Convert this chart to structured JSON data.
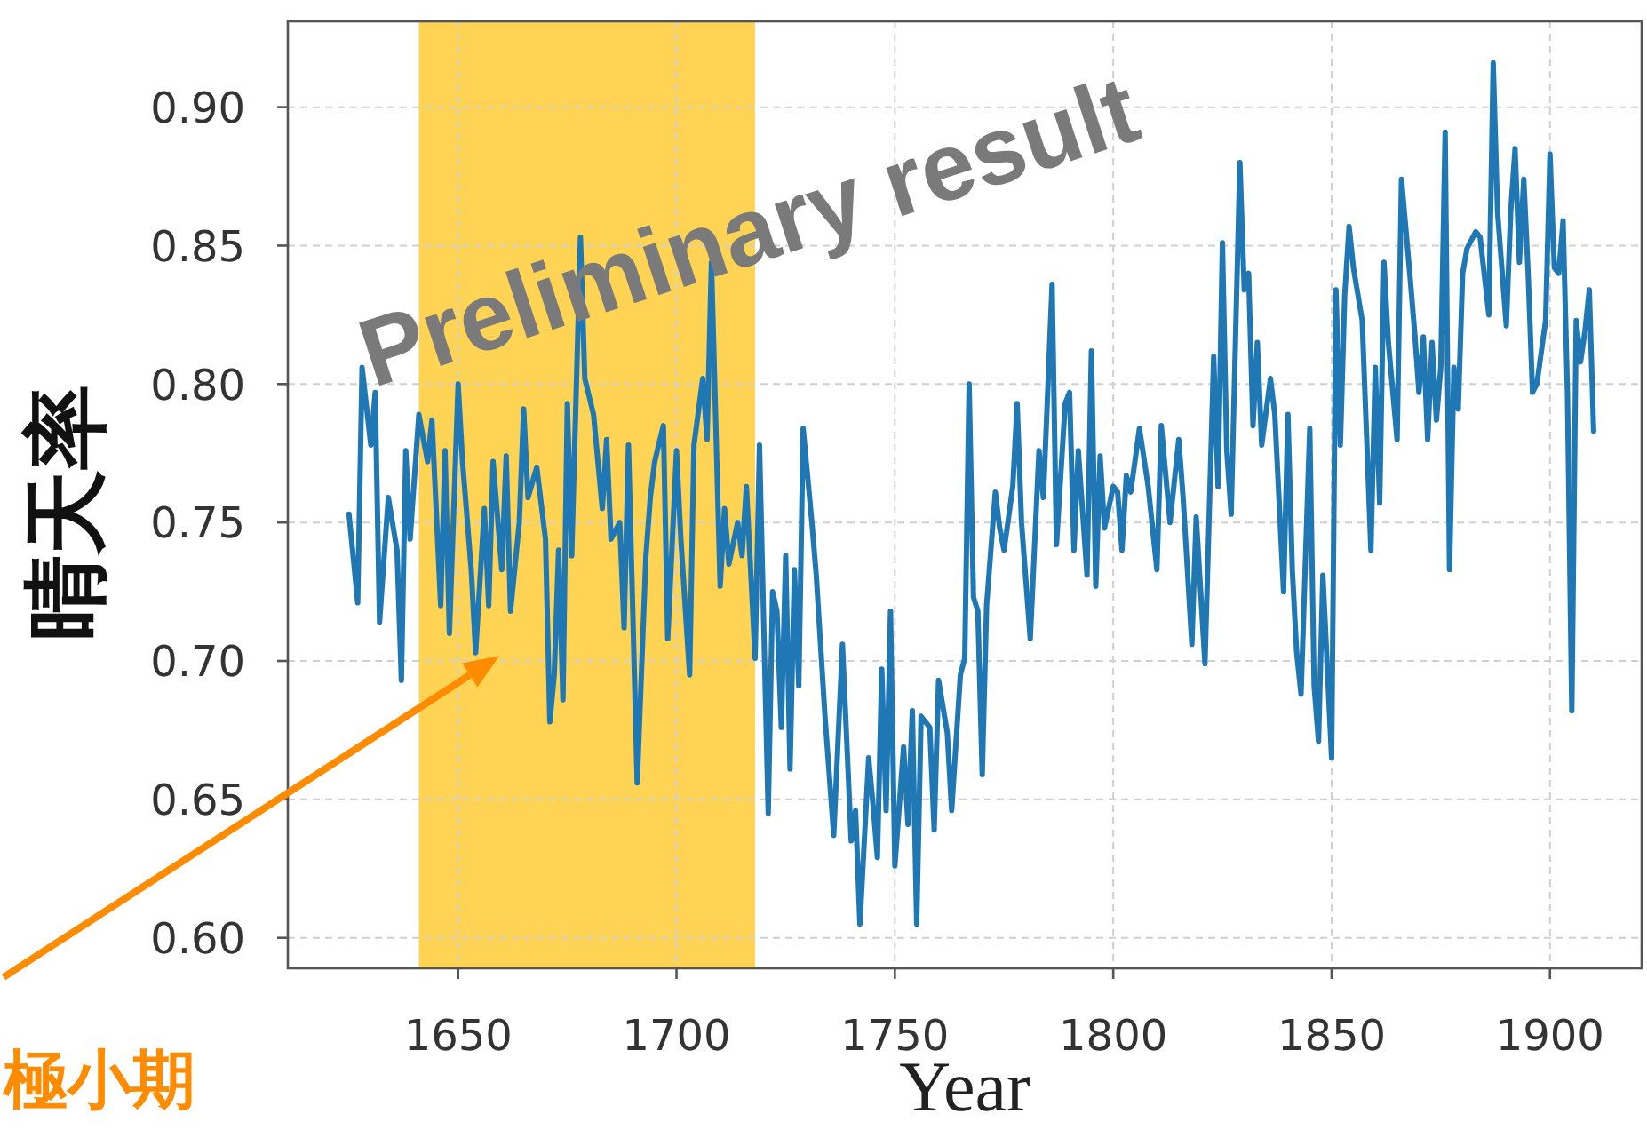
{
  "chart_data": {
    "type": "line",
    "xlabel": "Year",
    "ylabel": "晴天率",
    "annotations": [
      "Preliminary result"
    ],
    "xlim": [
      1611,
      1921
    ],
    "ylim": [
      0.589,
      0.931
    ],
    "xticks": [
      1650,
      1700,
      1750,
      1800,
      1850,
      1900
    ],
    "yticks": [
      {
        "value": 0.6,
        "label": "0.60"
      },
      0.65,
      {
        "value": 0.7,
        "label": "0.70"
      },
      0.75,
      {
        "value": 0.8,
        "label": "0.80"
      },
      0.85,
      {
        "value": 0.9,
        "label": "0.90"
      }
    ],
    "grid": true,
    "bands": [
      {
        "axis": "x",
        "from": 1641,
        "to": 1718,
        "label": "極小期",
        "color": "#ffc929"
      }
    ],
    "x": [
      1625,
      1627,
      1628,
      1630,
      1631,
      1632,
      1634,
      1636,
      1637,
      1638,
      1639,
      1641,
      1643,
      1644,
      1646,
      1647,
      1648,
      1650,
      1651,
      1653,
      1654,
      1656,
      1657,
      1658,
      1660,
      1661,
      1662,
      1664,
      1665,
      1666,
      1668,
      1670,
      1671,
      1672,
      1673,
      1674,
      1675,
      1676,
      1678,
      1679,
      1681,
      1683,
      1684,
      1685,
      1687,
      1688,
      1689,
      1691,
      1693,
      1694,
      1695,
      1697,
      1698,
      1700,
      1701,
      1703,
      1704,
      1706,
      1707,
      1708,
      1710,
      1711,
      1712,
      1714,
      1715,
      1716,
      1718,
      1719,
      1721,
      1722,
      1723,
      1724,
      1725,
      1726,
      1727,
      1728,
      1729,
      1731,
      1732,
      1734,
      1736,
      1738,
      1740,
      1741,
      1742,
      1744,
      1745,
      1746,
      1747,
      1748,
      1749,
      1750,
      1752,
      1753,
      1754,
      1755,
      1756,
      1758,
      1759,
      1760,
      1762,
      1763,
      1765,
      1766,
      1767,
      1768,
      1769,
      1770,
      1771,
      1773,
      1774,
      1775,
      1777,
      1778,
      1779,
      1781,
      1783,
      1784,
      1786,
      1787,
      1789,
      1790,
      1791,
      1792,
      1794,
      1795,
      1796,
      1797,
      1798,
      1800,
      1801,
      1802,
      1803,
      1804,
      1806,
      1808,
      1810,
      1811,
      1813,
      1815,
      1816,
      1818,
      1819,
      1821,
      1823,
      1824,
      1825,
      1826,
      1827,
      1829,
      1830,
      1831,
      1832,
      1833,
      1834,
      1836,
      1837,
      1839,
      1840,
      1841,
      1842,
      1843,
      1845,
      1846,
      1847,
      1848,
      1850,
      1851,
      1852,
      1853,
      1854,
      1855,
      1857,
      1859,
      1860,
      1861,
      1862,
      1863,
      1865,
      1866,
      1868,
      1869,
      1870,
      1871,
      1872,
      1873,
      1874,
      1875,
      1876,
      1877,
      1878,
      1879,
      1880,
      1881,
      1883,
      1884,
      1886,
      1887,
      1888,
      1890,
      1891,
      1892,
      1893,
      1894,
      1895,
      1896,
      1897,
      1899,
      1900,
      1901,
      1902,
      1903,
      1904,
      1905,
      1906,
      1907,
      1908,
      1909,
      1910
    ],
    "series": [
      {
        "color": "#1f77b4",
        "values": [
          0.753,
          0.721,
          0.806,
          0.778,
          0.797,
          0.714,
          0.759,
          0.74,
          0.693,
          0.776,
          0.744,
          0.789,
          0.772,
          0.787,
          0.72,
          0.776,
          0.71,
          0.8,
          0.772,
          0.733,
          0.703,
          0.755,
          0.72,
          0.772,
          0.733,
          0.774,
          0.718,
          0.75,
          0.791,
          0.759,
          0.77,
          0.744,
          0.678,
          0.695,
          0.74,
          0.686,
          0.793,
          0.738,
          0.853,
          0.802,
          0.789,
          0.755,
          0.78,
          0.744,
          0.75,
          0.712,
          0.778,
          0.656,
          0.738,
          0.759,
          0.772,
          0.785,
          0.708,
          0.776,
          0.744,
          0.695,
          0.778,
          0.802,
          0.78,
          0.844,
          0.727,
          0.755,
          0.735,
          0.75,
          0.738,
          0.763,
          0.701,
          0.778,
          0.645,
          0.725,
          0.718,
          0.676,
          0.738,
          0.661,
          0.733,
          0.691,
          0.784,
          0.75,
          0.731,
          0.68,
          0.637,
          0.706,
          0.635,
          0.646,
          0.605,
          0.665,
          0.648,
          0.629,
          0.697,
          0.646,
          0.718,
          0.626,
          0.669,
          0.641,
          0.682,
          0.605,
          0.68,
          0.676,
          0.639,
          0.693,
          0.674,
          0.646,
          0.695,
          0.701,
          0.8,
          0.723,
          0.718,
          0.659,
          0.72,
          0.761,
          0.748,
          0.74,
          0.763,
          0.793,
          0.75,
          0.708,
          0.776,
          0.759,
          0.836,
          0.742,
          0.793,
          0.797,
          0.74,
          0.776,
          0.731,
          0.812,
          0.727,
          0.774,
          0.748,
          0.763,
          0.761,
          0.74,
          0.767,
          0.761,
          0.784,
          0.763,
          0.733,
          0.785,
          0.75,
          0.78,
          0.759,
          0.706,
          0.752,
          0.699,
          0.81,
          0.763,
          0.851,
          0.776,
          0.753,
          0.88,
          0.834,
          0.84,
          0.785,
          0.815,
          0.778,
          0.802,
          0.789,
          0.725,
          0.789,
          0.733,
          0.703,
          0.688,
          0.784,
          0.691,
          0.671,
          0.731,
          0.665,
          0.834,
          0.778,
          0.832,
          0.857,
          0.842,
          0.823,
          0.74,
          0.806,
          0.757,
          0.844,
          0.815,
          0.78,
          0.874,
          0.838,
          0.819,
          0.797,
          0.817,
          0.78,
          0.815,
          0.787,
          0.806,
          0.891,
          0.733,
          0.806,
          0.791,
          0.84,
          0.849,
          0.855,
          0.853,
          0.825,
          0.916,
          0.862,
          0.821,
          0.862,
          0.885,
          0.844,
          0.874,
          0.84,
          0.797,
          0.8,
          0.823,
          0.883,
          0.842,
          0.84,
          0.859,
          0.797,
          0.682,
          0.823,
          0.808,
          0.819,
          0.834,
          0.783
        ]
      }
    ]
  }
}
